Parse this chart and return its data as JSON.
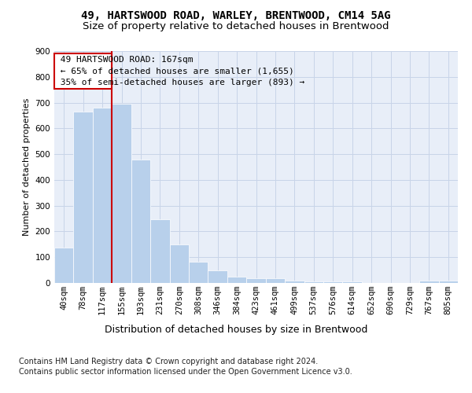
{
  "title1": "49, HARTSWOOD ROAD, WARLEY, BRENTWOOD, CM14 5AG",
  "title2": "Size of property relative to detached houses in Brentwood",
  "xlabel": "Distribution of detached houses by size in Brentwood",
  "ylabel": "Number of detached properties",
  "bar_color": "#b8d0eb",
  "bar_edgecolor": "white",
  "grid_color": "#c8d4e8",
  "bg_color": "#e8eef8",
  "annotation_box_color": "#cc0000",
  "vline_color": "#cc0000",
  "categories": [
    "40sqm",
    "78sqm",
    "117sqm",
    "155sqm",
    "193sqm",
    "231sqm",
    "270sqm",
    "308sqm",
    "346sqm",
    "384sqm",
    "423sqm",
    "461sqm",
    "499sqm",
    "537sqm",
    "576sqm",
    "614sqm",
    "652sqm",
    "690sqm",
    "729sqm",
    "767sqm",
    "805sqm"
  ],
  "values": [
    137,
    665,
    680,
    695,
    480,
    248,
    148,
    83,
    50,
    23,
    18,
    18,
    10,
    6,
    5,
    5,
    0,
    0,
    0,
    8,
    8
  ],
  "property_name": "49 HARTSWOOD ROAD",
  "property_size_label": "167sqm",
  "pct_smaller": 65,
  "n_smaller": "1,655",
  "pct_larger_semi": 35,
  "n_larger_semi": "893",
  "vline_x": 2.5,
  "ylim": [
    0,
    900
  ],
  "yticks": [
    0,
    100,
    200,
    300,
    400,
    500,
    600,
    700,
    800,
    900
  ],
  "footnote_line1": "Contains HM Land Registry data © Crown copyright and database right 2024.",
  "footnote_line2": "Contains public sector information licensed under the Open Government Licence v3.0.",
  "title1_fontsize": 10,
  "title2_fontsize": 9.5,
  "xlabel_fontsize": 9,
  "ylabel_fontsize": 8,
  "tick_fontsize": 7.5,
  "annot_fontsize": 8,
  "footnote_fontsize": 7
}
